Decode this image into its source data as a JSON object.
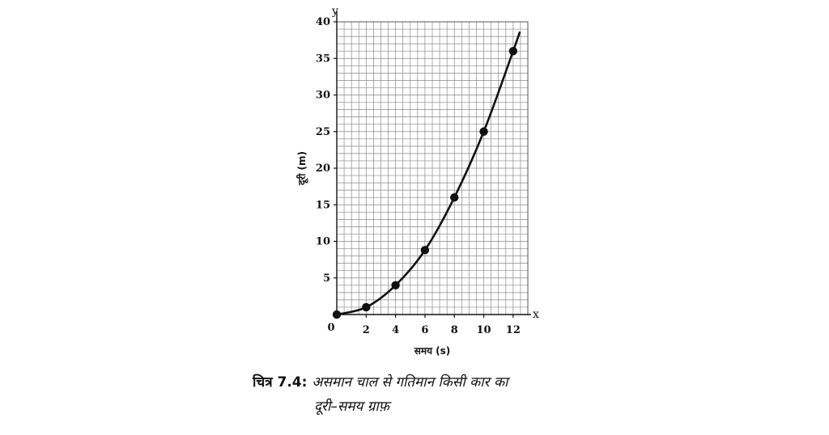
{
  "chart_data": {
    "type": "line",
    "x_axis_letter": "x",
    "y_axis_letter": "y",
    "xlabel": "समय (s)",
    "ylabel": "दूरी (m)",
    "xlim": [
      0,
      13
    ],
    "ylim": [
      0,
      40
    ],
    "x_ticks": [
      0,
      2,
      4,
      6,
      8,
      10,
      12
    ],
    "y_ticks": [
      5,
      10,
      15,
      20,
      25,
      30,
      35,
      40
    ],
    "grid": true,
    "series": [
      {
        "x": [
          0,
          2,
          4,
          6,
          8,
          10,
          12
        ],
        "y": [
          0,
          1,
          4,
          8.8,
          16,
          25,
          36
        ],
        "markers": true,
        "color": "#111111"
      }
    ]
  },
  "caption": {
    "label": "चित्र 7.4:",
    "line1": "असमान चाल से गतिमान किसी कार का",
    "line2": "दूरी–समय ग्राफ़"
  }
}
